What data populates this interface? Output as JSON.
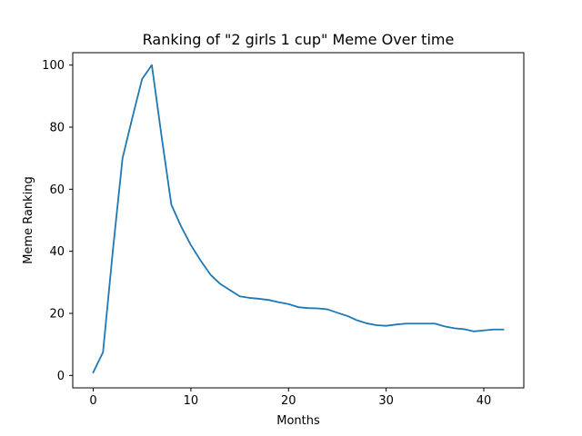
{
  "chart_data": {
    "type": "line",
    "title": "Ranking of \"2 girls 1 cup\" Meme Over time",
    "xlabel": "Months",
    "ylabel": "Meme Ranking",
    "xlim": [
      -2.1,
      44.1
    ],
    "ylim": [
      -4.0,
      104.0
    ],
    "xticks": [
      0,
      10,
      20,
      30,
      40
    ],
    "yticks": [
      0,
      20,
      40,
      60,
      80,
      100
    ],
    "grid": false,
    "legend": "none",
    "series": [
      {
        "color": "#1f77b4",
        "x": [
          0,
          1,
          2,
          3,
          4,
          5,
          6,
          7,
          8,
          9,
          10,
          11,
          12,
          13,
          14,
          15,
          16,
          17,
          18,
          19,
          20,
          21,
          22,
          23,
          24,
          25,
          26,
          27,
          28,
          29,
          30,
          31,
          32,
          33,
          34,
          35,
          36,
          37,
          38,
          39,
          40,
          41,
          42
        ],
        "y": [
          1,
          7.5,
          40,
          70,
          83,
          95.5,
          100,
          77,
          55,
          48,
          42,
          37,
          32.5,
          29.5,
          27.5,
          25.5,
          25,
          24.7,
          24.3,
          23.6,
          23,
          22,
          21.7,
          21.6,
          21.3,
          20.2,
          19.2,
          17.8,
          16.8,
          16.2,
          16,
          16.4,
          16.7,
          16.7,
          16.7,
          16.7,
          15.8,
          15.2,
          14.9,
          14.2,
          14.5,
          14.8,
          14.8
        ]
      }
    ]
  }
}
